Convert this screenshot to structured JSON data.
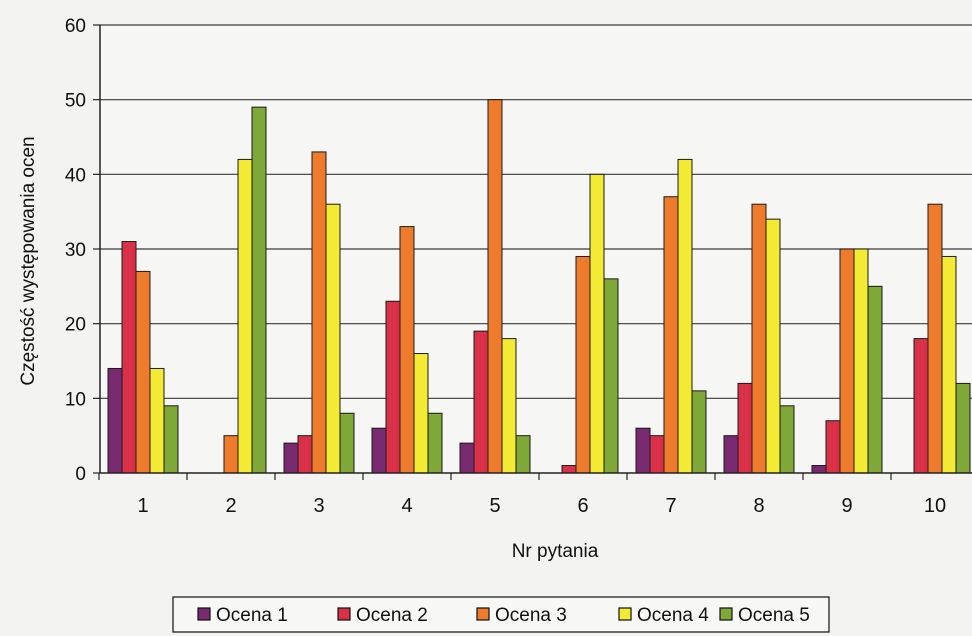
{
  "chart_data": {
    "type": "bar",
    "title": "",
    "xlabel": "Nr pytania",
    "ylabel": "Częstość występowania ocen",
    "ylim": [
      0,
      60
    ],
    "yticks": [
      0,
      10,
      20,
      30,
      40,
      50,
      60
    ],
    "grid": true,
    "legend_position": "bottom",
    "categories": [
      "1",
      "2",
      "3",
      "4",
      "5",
      "6",
      "7",
      "8",
      "9",
      "10"
    ],
    "series": [
      {
        "name": "Ocena 1",
        "color": "#7a2a70",
        "values": [
          14,
          0,
          4,
          6,
          4,
          0,
          6,
          5,
          1,
          0
        ]
      },
      {
        "name": "Ocena 2",
        "color": "#d93248",
        "values": [
          31,
          0,
          5,
          23,
          19,
          1,
          5,
          12,
          7,
          18
        ]
      },
      {
        "name": "Ocena 3",
        "color": "#ee7a2c",
        "values": [
          27,
          5,
          43,
          33,
          50,
          29,
          37,
          36,
          30,
          36
        ]
      },
      {
        "name": "Ocena 4",
        "color": "#f2ea33",
        "values": [
          14,
          42,
          36,
          16,
          18,
          40,
          42,
          34,
          30,
          29
        ]
      },
      {
        "name": "Ocena 5",
        "color": "#7ea838",
        "values": [
          9,
          49,
          8,
          8,
          5,
          26,
          11,
          9,
          25,
          12
        ]
      }
    ]
  }
}
